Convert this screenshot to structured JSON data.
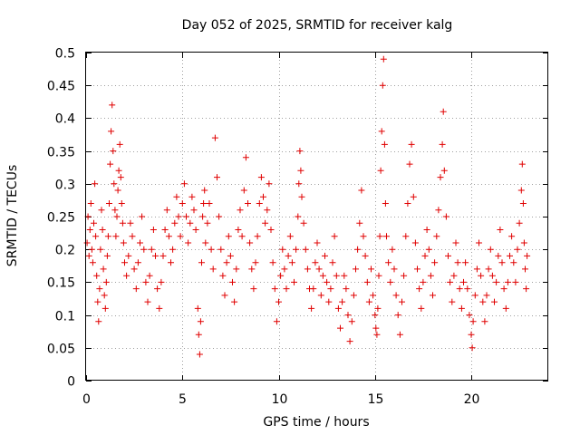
{
  "chart_data": {
    "type": "scatter",
    "title": "Day 052 of 2025, SRMTID for receiver kalg",
    "xlabel": "GPS time / hours",
    "ylabel": "SRMTID / TECUs",
    "xlim": [
      0,
      24
    ],
    "ylim": [
      0,
      0.5
    ],
    "xticks": [
      0,
      5,
      10,
      15,
      20
    ],
    "xtick_labels": [
      "0",
      "5",
      "10",
      "15",
      "20"
    ],
    "yticks": [
      0,
      0.05,
      0.1,
      0.15,
      0.2,
      0.25,
      0.3,
      0.35,
      0.4,
      0.45,
      0.5
    ],
    "ytick_labels": [
      "0",
      "0.05",
      "0.1",
      "0.15",
      "0.2",
      "0.25",
      "0.3",
      "0.35",
      "0.4",
      "0.45",
      "0.5"
    ],
    "grid": true,
    "marker": "plus",
    "color": "#e00000",
    "series": [
      {
        "name": "SRMTID",
        "points": [
          [
            0.05,
            0.21
          ],
          [
            0.1,
            0.25
          ],
          [
            0.15,
            0.19
          ],
          [
            0.2,
            0.23
          ],
          [
            0.25,
            0.27
          ],
          [
            0.3,
            0.2
          ],
          [
            0.35,
            0.18
          ],
          [
            0.4,
            0.24
          ],
          [
            0.45,
            0.3
          ],
          [
            0.5,
            0.22
          ],
          [
            0.55,
            0.16
          ],
          [
            0.6,
            0.12
          ],
          [
            0.65,
            0.09
          ],
          [
            0.7,
            0.14
          ],
          [
            0.75,
            0.2
          ],
          [
            0.8,
            0.26
          ],
          [
            0.85,
            0.23
          ],
          [
            0.9,
            0.17
          ],
          [
            0.95,
            0.13
          ],
          [
            1.0,
            0.11
          ],
          [
            1.05,
            0.15
          ],
          [
            1.1,
            0.19
          ],
          [
            1.15,
            0.22
          ],
          [
            1.2,
            0.27
          ],
          [
            1.25,
            0.33
          ],
          [
            1.3,
            0.38
          ],
          [
            1.35,
            0.42
          ],
          [
            1.4,
            0.35
          ],
          [
            1.45,
            0.3
          ],
          [
            1.5,
            0.26
          ],
          [
            1.55,
            0.22
          ],
          [
            1.6,
            0.25
          ],
          [
            1.65,
            0.29
          ],
          [
            1.7,
            0.32
          ],
          [
            1.75,
            0.36
          ],
          [
            1.8,
            0.31
          ],
          [
            1.85,
            0.27
          ],
          [
            1.9,
            0.24
          ],
          [
            1.95,
            0.21
          ],
          [
            2.0,
            0.18
          ],
          [
            2.1,
            0.16
          ],
          [
            2.2,
            0.19
          ],
          [
            2.3,
            0.24
          ],
          [
            2.4,
            0.22
          ],
          [
            2.5,
            0.17
          ],
          [
            2.6,
            0.14
          ],
          [
            2.7,
            0.18
          ],
          [
            2.8,
            0.21
          ],
          [
            2.9,
            0.25
          ],
          [
            3.0,
            0.2
          ],
          [
            3.1,
            0.15
          ],
          [
            3.2,
            0.12
          ],
          [
            3.3,
            0.16
          ],
          [
            3.4,
            0.2
          ],
          [
            3.5,
            0.23
          ],
          [
            3.6,
            0.19
          ],
          [
            3.7,
            0.14
          ],
          [
            3.8,
            0.11
          ],
          [
            3.9,
            0.15
          ],
          [
            4.0,
            0.19
          ],
          [
            4.1,
            0.23
          ],
          [
            4.2,
            0.26
          ],
          [
            4.3,
            0.22
          ],
          [
            4.4,
            0.18
          ],
          [
            4.5,
            0.2
          ],
          [
            4.6,
            0.24
          ],
          [
            4.7,
            0.28
          ],
          [
            4.8,
            0.25
          ],
          [
            4.9,
            0.22
          ],
          [
            5.0,
            0.27
          ],
          [
            5.1,
            0.3
          ],
          [
            5.2,
            0.25
          ],
          [
            5.3,
            0.21
          ],
          [
            5.4,
            0.24
          ],
          [
            5.5,
            0.28
          ],
          [
            5.6,
            0.26
          ],
          [
            5.7,
            0.23
          ],
          [
            5.8,
            0.11
          ],
          [
            5.85,
            0.07
          ],
          [
            5.9,
            0.04
          ],
          [
            5.95,
            0.09
          ],
          [
            6.0,
            0.18
          ],
          [
            6.05,
            0.25
          ],
          [
            6.1,
            0.27
          ],
          [
            6.15,
            0.29
          ],
          [
            6.2,
            0.21
          ],
          [
            6.3,
            0.24
          ],
          [
            6.4,
            0.27
          ],
          [
            6.5,
            0.2
          ],
          [
            6.6,
            0.17
          ],
          [
            6.7,
            0.37
          ],
          [
            6.8,
            0.31
          ],
          [
            6.9,
            0.25
          ],
          [
            7.0,
            0.2
          ],
          [
            7.1,
            0.16
          ],
          [
            7.2,
            0.13
          ],
          [
            7.3,
            0.18
          ],
          [
            7.4,
            0.22
          ],
          [
            7.5,
            0.19
          ],
          [
            7.6,
            0.15
          ],
          [
            7.7,
            0.12
          ],
          [
            7.8,
            0.17
          ],
          [
            7.9,
            0.23
          ],
          [
            8.0,
            0.26
          ],
          [
            8.1,
            0.22
          ],
          [
            8.2,
            0.29
          ],
          [
            8.3,
            0.34
          ],
          [
            8.4,
            0.27
          ],
          [
            8.5,
            0.21
          ],
          [
            8.6,
            0.17
          ],
          [
            8.7,
            0.14
          ],
          [
            8.8,
            0.18
          ],
          [
            8.9,
            0.22
          ],
          [
            9.0,
            0.27
          ],
          [
            9.1,
            0.31
          ],
          [
            9.2,
            0.28
          ],
          [
            9.3,
            0.24
          ],
          [
            9.4,
            0.26
          ],
          [
            9.5,
            0.3
          ],
          [
            9.6,
            0.23
          ],
          [
            9.7,
            0.18
          ],
          [
            9.8,
            0.14
          ],
          [
            9.9,
            0.09
          ],
          [
            10.0,
            0.12
          ],
          [
            10.1,
            0.16
          ],
          [
            10.2,
            0.2
          ],
          [
            10.3,
            0.17
          ],
          [
            10.4,
            0.14
          ],
          [
            10.5,
            0.19
          ],
          [
            10.6,
            0.22
          ],
          [
            10.7,
            0.18
          ],
          [
            10.8,
            0.15
          ],
          [
            10.9,
            0.2
          ],
          [
            11.0,
            0.25
          ],
          [
            11.05,
            0.3
          ],
          [
            11.1,
            0.35
          ],
          [
            11.15,
            0.32
          ],
          [
            11.2,
            0.28
          ],
          [
            11.3,
            0.24
          ],
          [
            11.4,
            0.2
          ],
          [
            11.5,
            0.17
          ],
          [
            11.6,
            0.14
          ],
          [
            11.7,
            0.11
          ],
          [
            11.8,
            0.14
          ],
          [
            11.9,
            0.18
          ],
          [
            12.0,
            0.21
          ],
          [
            12.1,
            0.17
          ],
          [
            12.2,
            0.13
          ],
          [
            12.3,
            0.16
          ],
          [
            12.4,
            0.19
          ],
          [
            12.5,
            0.15
          ],
          [
            12.6,
            0.12
          ],
          [
            12.7,
            0.14
          ],
          [
            12.8,
            0.18
          ],
          [
            12.9,
            0.22
          ],
          [
            13.0,
            0.16
          ],
          [
            13.1,
            0.11
          ],
          [
            13.2,
            0.08
          ],
          [
            13.3,
            0.12
          ],
          [
            13.4,
            0.16
          ],
          [
            13.5,
            0.14
          ],
          [
            13.6,
            0.1
          ],
          [
            13.7,
            0.06
          ],
          [
            13.8,
            0.09
          ],
          [
            13.9,
            0.13
          ],
          [
            14.0,
            0.17
          ],
          [
            14.1,
            0.2
          ],
          [
            14.2,
            0.24
          ],
          [
            14.3,
            0.29
          ],
          [
            14.4,
            0.22
          ],
          [
            14.5,
            0.19
          ],
          [
            14.6,
            0.15
          ],
          [
            14.7,
            0.12
          ],
          [
            14.8,
            0.17
          ],
          [
            14.9,
            0.13
          ],
          [
            15.0,
            0.1
          ],
          [
            15.05,
            0.08
          ],
          [
            15.1,
            0.07
          ],
          [
            15.15,
            0.11
          ],
          [
            15.2,
            0.16
          ],
          [
            15.25,
            0.22
          ],
          [
            15.3,
            0.32
          ],
          [
            15.35,
            0.38
          ],
          [
            15.4,
            0.45
          ],
          [
            15.45,
            0.49
          ],
          [
            15.5,
            0.36
          ],
          [
            15.55,
            0.27
          ],
          [
            15.6,
            0.22
          ],
          [
            15.7,
            0.18
          ],
          [
            15.8,
            0.15
          ],
          [
            15.9,
            0.2
          ],
          [
            16.0,
            0.17
          ],
          [
            16.1,
            0.13
          ],
          [
            16.2,
            0.1
          ],
          [
            16.3,
            0.07
          ],
          [
            16.4,
            0.12
          ],
          [
            16.5,
            0.16
          ],
          [
            16.6,
            0.22
          ],
          [
            16.7,
            0.27
          ],
          [
            16.8,
            0.33
          ],
          [
            16.9,
            0.36
          ],
          [
            17.0,
            0.28
          ],
          [
            17.1,
            0.21
          ],
          [
            17.2,
            0.17
          ],
          [
            17.3,
            0.14
          ],
          [
            17.4,
            0.11
          ],
          [
            17.5,
            0.15
          ],
          [
            17.6,
            0.19
          ],
          [
            17.7,
            0.23
          ],
          [
            17.8,
            0.2
          ],
          [
            17.9,
            0.16
          ],
          [
            18.0,
            0.13
          ],
          [
            18.1,
            0.18
          ],
          [
            18.2,
            0.22
          ],
          [
            18.3,
            0.26
          ],
          [
            18.4,
            0.31
          ],
          [
            18.5,
            0.36
          ],
          [
            18.55,
            0.41
          ],
          [
            18.6,
            0.32
          ],
          [
            18.7,
            0.25
          ],
          [
            18.8,
            0.19
          ],
          [
            18.9,
            0.15
          ],
          [
            19.0,
            0.12
          ],
          [
            19.1,
            0.16
          ],
          [
            19.2,
            0.21
          ],
          [
            19.3,
            0.18
          ],
          [
            19.4,
            0.14
          ],
          [
            19.5,
            0.11
          ],
          [
            19.6,
            0.15
          ],
          [
            19.7,
            0.18
          ],
          [
            19.8,
            0.14
          ],
          [
            19.9,
            0.1
          ],
          [
            20.0,
            0.07
          ],
          [
            20.05,
            0.05
          ],
          [
            20.1,
            0.09
          ],
          [
            20.2,
            0.13
          ],
          [
            20.3,
            0.17
          ],
          [
            20.4,
            0.21
          ],
          [
            20.5,
            0.16
          ],
          [
            20.6,
            0.12
          ],
          [
            20.7,
            0.09
          ],
          [
            20.8,
            0.13
          ],
          [
            20.9,
            0.17
          ],
          [
            21.0,
            0.2
          ],
          [
            21.1,
            0.16
          ],
          [
            21.2,
            0.12
          ],
          [
            21.3,
            0.15
          ],
          [
            21.4,
            0.19
          ],
          [
            21.5,
            0.23
          ],
          [
            21.6,
            0.18
          ],
          [
            21.7,
            0.14
          ],
          [
            21.8,
            0.11
          ],
          [
            21.9,
            0.15
          ],
          [
            22.0,
            0.19
          ],
          [
            22.1,
            0.22
          ],
          [
            22.2,
            0.18
          ],
          [
            22.3,
            0.15
          ],
          [
            22.4,
            0.2
          ],
          [
            22.5,
            0.24
          ],
          [
            22.6,
            0.29
          ],
          [
            22.65,
            0.33
          ],
          [
            22.7,
            0.27
          ],
          [
            22.75,
            0.21
          ],
          [
            22.8,
            0.17
          ],
          [
            22.85,
            0.14
          ],
          [
            22.9,
            0.19
          ]
        ]
      }
    ]
  }
}
